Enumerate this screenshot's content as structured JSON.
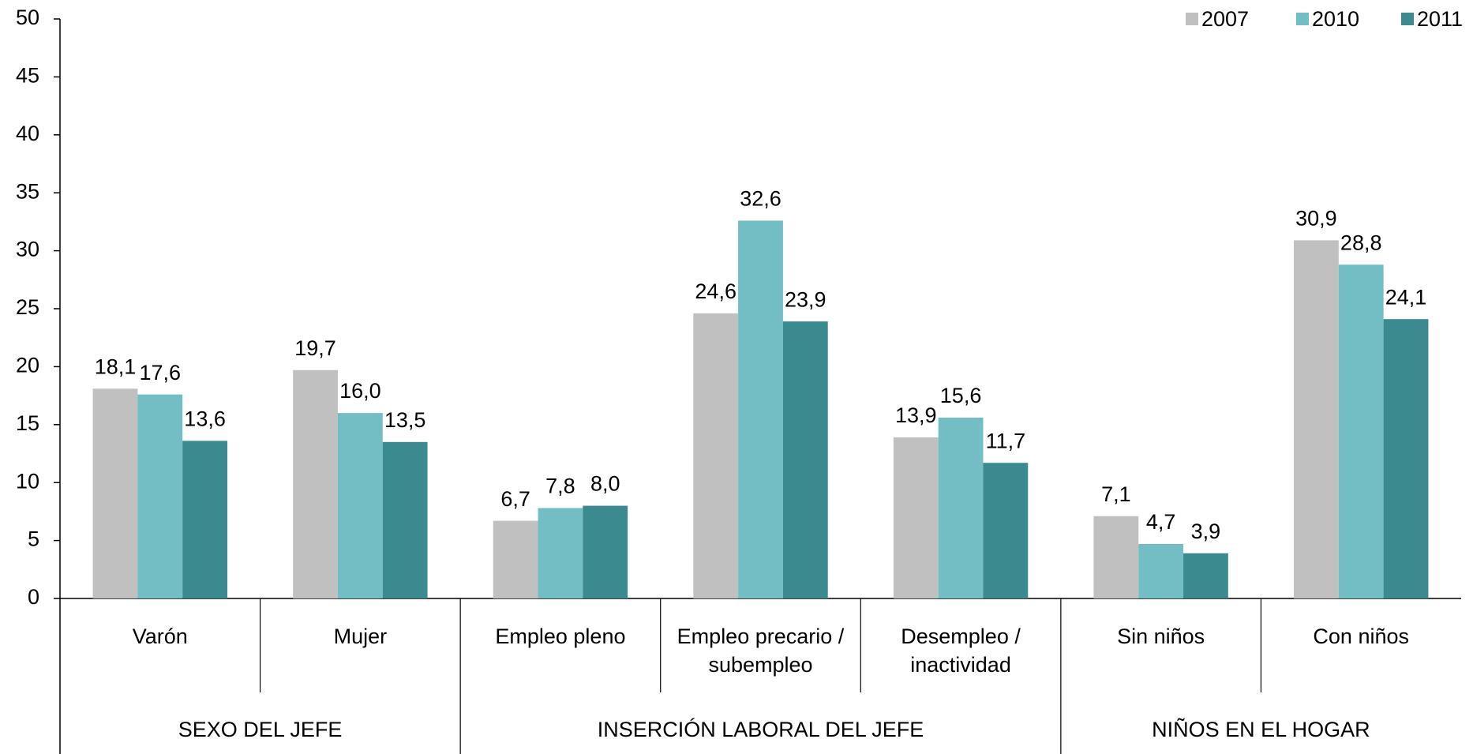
{
  "chart_data": {
    "type": "bar",
    "groups": [
      {
        "label": "SEXO DEL JEFE",
        "categories": [
          "Varón",
          "Mujer"
        ]
      },
      {
        "label": "INSERCIÓN LABORAL DEL JEFE",
        "categories": [
          "Empleo pleno",
          "Empleo precario / subempleo",
          "Desempleo / inactividad"
        ]
      },
      {
        "label": "NIÑOS EN EL HOGAR",
        "categories": [
          "Sin niños",
          "Con niños"
        ]
      }
    ],
    "series": [
      {
        "name": "2007",
        "color": "#c0c0c0",
        "values": [
          18.1,
          19.7,
          6.7,
          24.6,
          13.9,
          7.1,
          30.9
        ],
        "value_labels": [
          "18,1",
          "19,7",
          "6,7",
          "24,6",
          "13,9",
          "7,1",
          "30,9"
        ]
      },
      {
        "name": "2010",
        "color": "#72bec4",
        "values": [
          17.6,
          16.0,
          7.8,
          32.6,
          15.6,
          4.7,
          28.8
        ],
        "value_labels": [
          "17,6",
          "16,0",
          "7,8",
          "32,6",
          "15,6",
          "4,7",
          "28,8"
        ]
      },
      {
        "name": "2011",
        "color": "#3b8a90",
        "values": [
          13.6,
          13.5,
          8.0,
          23.9,
          11.7,
          3.9,
          24.1
        ],
        "value_labels": [
          "13,6",
          "13,5",
          "8,0",
          "23,9",
          "11,7",
          "3,9",
          "24,1"
        ]
      }
    ],
    "ylim": [
      0,
      50
    ],
    "yticks": [
      0,
      5,
      10,
      15,
      20,
      25,
      30,
      35,
      40,
      45,
      50
    ],
    "grid": false,
    "legend": "top-right"
  }
}
